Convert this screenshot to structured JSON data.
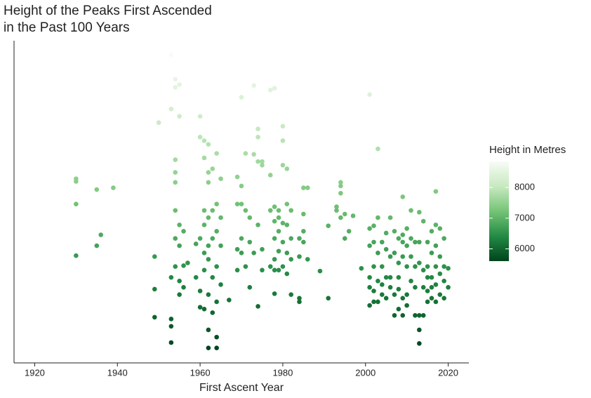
{
  "chart_data": {
    "type": "scatter",
    "title": [
      "Height of the Peaks First Ascended",
      "in the Past 100 Years"
    ],
    "x_label": "First Ascent Year",
    "xlim": [
      1915,
      2025
    ],
    "xticks": [
      1920,
      1940,
      1960,
      1980,
      2000,
      2020
    ],
    "ylim": [
      5445,
      9005
    ],
    "x": [
      1930,
      1930,
      1930,
      1930,
      1935,
      1935,
      1936,
      1939,
      1950,
      1949,
      1949,
      1949,
      1953,
      1953,
      1953,
      1953,
      1953,
      1953,
      1954,
      1954,
      1954,
      1954,
      1954,
      1954,
      1954,
      1954,
      1955,
      1955,
      1955,
      1955,
      1955,
      1955,
      1956,
      1956,
      1956,
      1957,
      1959,
      1959,
      1960,
      1960,
      1960,
      1960,
      1960,
      1961,
      1961,
      1961,
      1961,
      1961,
      1961,
      1961,
      1962,
      1962,
      1962,
      1962,
      1962,
      1962,
      1962,
      1962,
      1962,
      1963,
      1963,
      1963,
      1963,
      1963,
      1964,
      1964,
      1964,
      1964,
      1964,
      1964,
      1964,
      1965,
      1965,
      1965,
      1965,
      1967,
      1969,
      1969,
      1969,
      1969,
      1970,
      1970,
      1970,
      1970,
      1970,
      1971,
      1971,
      1971,
      1972,
      1972,
      1972,
      1973,
      1973,
      1973,
      1974,
      1974,
      1974,
      1974,
      1974,
      1975,
      1975,
      1975,
      1975,
      1977,
      1977,
      1977,
      1977,
      1978,
      1978,
      1978,
      1978,
      1978,
      1978,
      1978,
      1979,
      1979,
      1979,
      1979,
      1979,
      1980,
      1980,
      1980,
      1980,
      1980,
      1980,
      1981,
      1981,
      1981,
      1981,
      1981,
      1982,
      1982,
      1982,
      1982,
      1984,
      1984,
      1984,
      1984,
      1985,
      1985,
      1985,
      1985,
      1986,
      1986,
      1989,
      1991,
      1991,
      1993,
      1993,
      1994,
      1994,
      1994,
      1994,
      1995,
      1995,
      1996,
      1997,
      1999,
      2001,
      2001,
      2001,
      2001,
      2001,
      2001,
      2002,
      2002,
      2002,
      2002,
      2002,
      2003,
      2003,
      2003,
      2003,
      2003,
      2004,
      2004,
      2004,
      2004,
      2005,
      2005,
      2005,
      2005,
      2006,
      2006,
      2006,
      2006,
      2007,
      2007,
      2007,
      2007,
      2008,
      2008,
      2008,
      2008,
      2008,
      2009,
      2009,
      2009,
      2009,
      2009,
      2009,
      2010,
      2010,
      2010,
      2010,
      2010,
      2011,
      2011,
      2011,
      2011,
      2012,
      2012,
      2012,
      2012,
      2013,
      2013,
      2013,
      2013,
      2013,
      2013,
      2014,
      2014,
      2014,
      2014,
      2015,
      2015,
      2015,
      2015,
      2015,
      2016,
      2016,
      2016,
      2016,
      2016,
      2017,
      2017,
      2017,
      2017,
      2017,
      2017,
      2018,
      2018,
      2018,
      2018,
      2019,
      2019,
      2019,
      2019,
      2020,
      2020
    ],
    "values": [
      7480,
      7450,
      7200,
      6630,
      7360,
      6740,
      6860,
      7380,
      8100,
      6620,
      6260,
      5950,
      8848,
      8250,
      6390,
      5930,
      5850,
      5670,
      8580,
      8490,
      7690,
      7550,
      7440,
      7130,
      6820,
      6510,
      8520,
      8170,
      6970,
      6740,
      6350,
      6200,
      6900,
      6520,
      6280,
      6550,
      6760,
      6390,
      8170,
      7940,
      6820,
      6240,
      6060,
      7900,
      7710,
      7130,
      6970,
      6660,
      6470,
      6040,
      7860,
      7550,
      7440,
      7050,
      6740,
      6590,
      6200,
      5810,
      5610,
      7590,
      7130,
      6820,
      6390,
      6000,
      7760,
      7200,
      6900,
      6510,
      6120,
      5730,
      5610,
      7480,
      7050,
      6740,
      6310,
      6140,
      7500,
      7200,
      6700,
      6470,
      8380,
      7400,
      7200,
      6820,
      6660,
      7760,
      7130,
      6510,
      7050,
      6780,
      6280,
      8510,
      7750,
      6660,
      8030,
      7940,
      7670,
      6970,
      6070,
      7670,
      7630,
      6700,
      6470,
      8460,
      7520,
      7130,
      6510,
      8480,
      7170,
      7010,
      6820,
      6590,
      6470,
      6210,
      7130,
      7050,
      6900,
      6680,
      6470,
      8060,
      7900,
      7630,
      6990,
      6780,
      6510,
      7590,
      7200,
      6970,
      6660,
      6430,
      7130,
      6820,
      6590,
      6200,
      6820,
      6620,
      6160,
      6120,
      7380,
      7090,
      6900,
      6780,
      7380,
      6590,
      6460,
      6960,
      6160,
      7170,
      7130,
      7440,
      7400,
      7320,
      7050,
      7090,
      6820,
      6900,
      7070,
      6490,
      8410,
      6930,
      6740,
      6390,
      6280,
      6080,
      6960,
      6780,
      6510,
      6240,
      6120,
      7810,
      7050,
      6660,
      6350,
      6120,
      6780,
      6510,
      6310,
      6200,
      6880,
      6700,
      6390,
      6160,
      7050,
      6620,
      6390,
      6280,
      6900,
      6660,
      6200,
      5970,
      6820,
      6550,
      6390,
      6260,
      6040,
      7280,
      6860,
      6780,
      6620,
      6160,
      5970,
      6930,
      6740,
      6510,
      6200,
      6080,
      7130,
      6820,
      6620,
      6350,
      6780,
      6510,
      6280,
      5970,
      7110,
      6780,
      6550,
      5970,
      5810,
      5660,
      7010,
      6470,
      6280,
      5970,
      6780,
      6510,
      6390,
      6240,
      6120,
      6900,
      6660,
      6390,
      6280,
      6160,
      7340,
      6970,
      6740,
      6510,
      6310,
      6120,
      6930,
      6620,
      6430,
      6200,
      6820,
      6510,
      6350,
      6160,
      6490,
      6280
    ],
    "colorbar": {
      "title": "Height in Metres",
      "range": [
        5600,
        8850
      ],
      "ticks": [
        6000,
        7000,
        8000
      ],
      "colors": [
        "#00441b",
        "#238b45",
        "#74c476",
        "#c7e9c0",
        "#f7fcf5"
      ]
    }
  }
}
